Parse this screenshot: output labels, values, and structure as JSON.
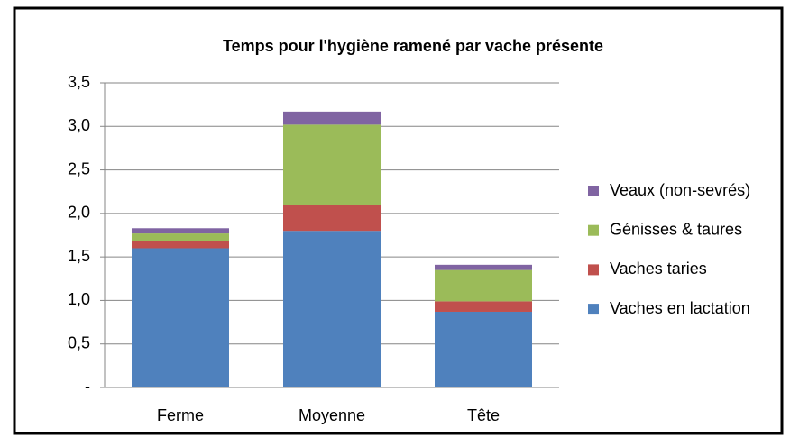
{
  "chart_data": {
    "type": "stacked_bar",
    "title": "Temps pour l'hygiène ramené par vache présente",
    "categories": [
      "Ferme",
      "Moyenne",
      "Tête"
    ],
    "series": [
      {
        "name": "Vaches en lactation",
        "color": "#4f81bd",
        "values": [
          1.6,
          1.8,
          0.87
        ]
      },
      {
        "name": "Vaches taries",
        "color": "#c0504d",
        "values": [
          0.08,
          0.3,
          0.12
        ]
      },
      {
        "name": "Génisses & taures",
        "color": "#9bbb59",
        "values": [
          0.09,
          0.92,
          0.36
        ]
      },
      {
        "name": "Veaux (non-sevrés)",
        "color": "#8064a2",
        "values": [
          0.06,
          0.15,
          0.06
        ]
      }
    ],
    "ylim": [
      0,
      3.5
    ],
    "yticks": [
      {
        "value": 0,
        "label": "-"
      },
      {
        "value": 0.5,
        "label": "0,5"
      },
      {
        "value": 1,
        "label": "1,0"
      },
      {
        "value": 1.5,
        "label": "1,5"
      },
      {
        "value": 2,
        "label": "2,0"
      },
      {
        "value": 2.5,
        "label": "2,5"
      },
      {
        "value": 3,
        "label": "3,0"
      },
      {
        "value": 3.5,
        "label": "3,5"
      }
    ],
    "grid": true,
    "legend": "right"
  }
}
